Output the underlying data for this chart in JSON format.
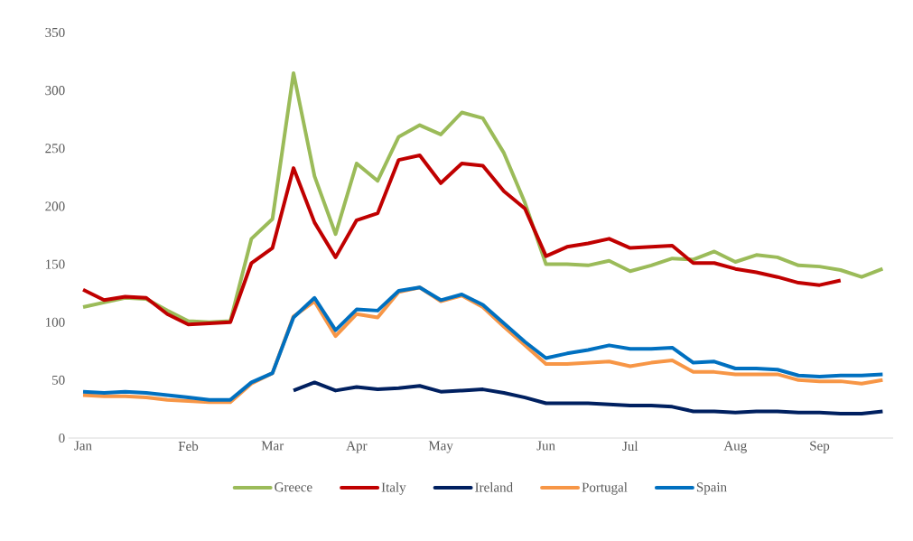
{
  "chart_data": {
    "type": "line",
    "categories": [
      "Jan",
      null,
      null,
      null,
      null,
      "Feb",
      null,
      null,
      null,
      "Mar",
      null,
      null,
      null,
      "Apr",
      null,
      null,
      null,
      "May",
      null,
      null,
      null,
      null,
      "Jun",
      null,
      null,
      null,
      "Jul",
      null,
      null,
      null,
      null,
      "Aug",
      null,
      null,
      null,
      "Sep",
      null,
      null,
      null
    ],
    "series": [
      {
        "name": "Greece",
        "color": "#9bbb59",
        "values": [
          113,
          117,
          121,
          120,
          110,
          101,
          100,
          101,
          172,
          189,
          315,
          226,
          176,
          237,
          222,
          260,
          270,
          262,
          281,
          276,
          246,
          203,
          150,
          150,
          149,
          153,
          144,
          149,
          155,
          154,
          161,
          152,
          158,
          156,
          149,
          148,
          145,
          139,
          146
        ]
      },
      {
        "name": "Italy",
        "color": "#c00000",
        "values": [
          128,
          119,
          122,
          121,
          107,
          98,
          99,
          100,
          151,
          164,
          233,
          186,
          156,
          188,
          194,
          240,
          244,
          220,
          237,
          235,
          213,
          198,
          157,
          165,
          168,
          172,
          164,
          165,
          166,
          151,
          151,
          146,
          143,
          139,
          134,
          132,
          136,
          null,
          null
        ]
      },
      {
        "name": "Ireland",
        "color": "#002060",
        "values": [
          null,
          null,
          null,
          null,
          null,
          null,
          null,
          null,
          null,
          null,
          41,
          48,
          41,
          44,
          42,
          43,
          45,
          40,
          41,
          42,
          39,
          35,
          30,
          30,
          30,
          29,
          28,
          28,
          27,
          23,
          23,
          22,
          23,
          23,
          22,
          22,
          21,
          21,
          23
        ]
      },
      {
        "name": "Portugal",
        "color": "#f79646",
        "values": [
          37,
          36,
          36,
          35,
          33,
          32,
          31,
          31,
          47,
          56,
          105,
          118,
          88,
          107,
          104,
          126,
          130,
          118,
          123,
          113,
          96,
          80,
          64,
          64,
          65,
          66,
          62,
          65,
          67,
          57,
          57,
          55,
          55,
          55,
          50,
          49,
          49,
          47,
          50
        ]
      },
      {
        "name": "Spain",
        "color": "#0070c0",
        "values": [
          40,
          39,
          40,
          39,
          37,
          35,
          33,
          33,
          48,
          56,
          104,
          121,
          93,
          111,
          110,
          127,
          130,
          119,
          124,
          115,
          99,
          83,
          69,
          73,
          76,
          80,
          77,
          77,
          78,
          65,
          66,
          60,
          60,
          59,
          54,
          53,
          54,
          54,
          55
        ]
      }
    ],
    "ylim": [
      0,
      350
    ],
    "yticks": [
      0,
      50,
      100,
      150,
      200,
      250,
      300,
      350
    ],
    "legend": "bottom",
    "grid": false,
    "marker": "none",
    "line_style": "solid"
  }
}
